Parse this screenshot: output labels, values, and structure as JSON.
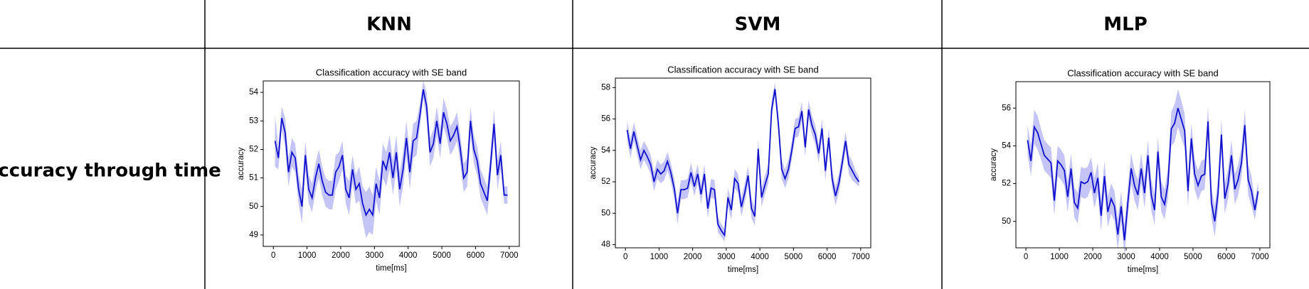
{
  "table": {
    "headers": [
      "KNN",
      "SVM",
      "MLP"
    ],
    "row_label": "Accuracy through time"
  },
  "chart_data": [
    {
      "type": "line",
      "title": "Classification accuracy with SE band",
      "xlabel": "time[ms]",
      "ylabel": "accuracy",
      "x": [
        50,
        150,
        250,
        350,
        450,
        550,
        650,
        750,
        850,
        950,
        1050,
        1150,
        1250,
        1350,
        1450,
        1550,
        1650,
        1750,
        1850,
        1950,
        2050,
        2150,
        2250,
        2350,
        2450,
        2550,
        2650,
        2750,
        2850,
        2950,
        3050,
        3150,
        3250,
        3350,
        3450,
        3550,
        3650,
        3750,
        3850,
        3950,
        4050,
        4150,
        4250,
        4350,
        4450,
        4550,
        4650,
        4750,
        4850,
        4950,
        5050,
        5150,
        5250,
        5350,
        5450,
        5550,
        5650,
        5750,
        5850,
        5950,
        6050,
        6150,
        6250,
        6350,
        6450,
        6550,
        6650,
        6750,
        6850,
        6950
      ],
      "xlim": [
        -300,
        7300
      ],
      "xticks": [
        0,
        1000,
        2000,
        3000,
        4000,
        5000,
        6000,
        7000
      ],
      "ylim": [
        48.6,
        54.4
      ],
      "yticks": [
        49,
        50,
        51,
        52,
        53,
        54
      ],
      "series": [
        {
          "color": "#1010cc",
          "band_color": "#c4c4f6",
          "values": [
            52.3,
            51.7,
            53.1,
            52.6,
            51.2,
            51.9,
            51.7,
            50.6,
            50.0,
            51.8,
            50.6,
            50.3,
            51.0,
            51.5,
            50.9,
            50.5,
            50.4,
            50.4,
            51.2,
            51.4,
            51.8,
            50.6,
            50.3,
            51.3,
            50.6,
            50.8,
            50.1,
            49.7,
            49.9,
            49.7,
            50.8,
            50.3,
            51.6,
            51.3,
            51.9,
            51.0,
            51.9,
            50.6,
            51.3,
            52.4,
            51.2,
            52.3,
            52.4,
            53.2,
            54.1,
            53.5,
            51.9,
            52.2,
            53.0,
            52.2,
            53.3,
            52.9,
            52.3,
            52.5,
            52.8,
            52.0,
            51.0,
            51.2,
            53.0,
            52.0,
            51.6,
            50.8,
            50.5,
            50.2,
            51.5,
            52.9,
            51.1,
            51.8,
            50.4,
            50.4
          ],
          "se": [
            0.9,
            0.4,
            0.4,
            0.5,
            0.5,
            0.5,
            0.5,
            0.5,
            0.6,
            0.5,
            0.5,
            0.5,
            0.5,
            0.5,
            0.5,
            0.5,
            0.5,
            0.5,
            0.6,
            0.5,
            0.5,
            0.5,
            0.6,
            0.5,
            0.5,
            0.6,
            0.6,
            0.8,
            0.8,
            0.7,
            0.6,
            0.6,
            0.6,
            0.6,
            0.6,
            0.6,
            0.6,
            0.6,
            0.6,
            0.6,
            0.6,
            0.6,
            0.6,
            0.4,
            0.3,
            0.5,
            0.5,
            0.5,
            0.5,
            0.5,
            0.5,
            0.5,
            0.5,
            0.5,
            0.5,
            0.5,
            0.5,
            0.5,
            0.5,
            0.5,
            0.5,
            0.5,
            0.5,
            0.5,
            0.5,
            0.5,
            0.5,
            0.5,
            0.3,
            0.3
          ]
        }
      ]
    },
    {
      "type": "line",
      "title": "Classification accuracy with SE band",
      "xlabel": "time[ms]",
      "ylabel": "accuracy",
      "x": [
        50,
        150,
        250,
        350,
        450,
        550,
        650,
        750,
        850,
        950,
        1050,
        1150,
        1250,
        1350,
        1450,
        1550,
        1650,
        1750,
        1850,
        1950,
        2050,
        2150,
        2250,
        2350,
        2450,
        2550,
        2650,
        2750,
        2850,
        2950,
        3050,
        3150,
        3250,
        3350,
        3450,
        3550,
        3650,
        3750,
        3850,
        3950,
        4050,
        4150,
        4250,
        4350,
        4450,
        4550,
        4650,
        4750,
        4850,
        4950,
        5050,
        5150,
        5250,
        5350,
        5450,
        5550,
        5650,
        5750,
        5850,
        5950,
        6050,
        6150,
        6250,
        6350,
        6450,
        6550,
        6650,
        6750,
        6850,
        6950
      ],
      "xlim": [
        -300,
        7300
      ],
      "xticks": [
        0,
        1000,
        2000,
        3000,
        4000,
        5000,
        6000,
        7000
      ],
      "ylim": [
        47.8,
        58.6
      ],
      "yticks": [
        48,
        50,
        52,
        54,
        56,
        58
      ],
      "series": [
        {
          "color": "#1010cc",
          "band_color": "#c4c4f6",
          "values": [
            55.3,
            54.1,
            55.2,
            54.3,
            53.4,
            54.0,
            53.6,
            53.1,
            52.0,
            52.8,
            52.5,
            52.7,
            53.3,
            52.6,
            51.6,
            50.0,
            51.5,
            51.5,
            51.6,
            52.6,
            51.7,
            52.5,
            51.2,
            52.5,
            50.3,
            51.6,
            51.5,
            49.3,
            48.9,
            48.6,
            51.0,
            50.2,
            52.2,
            51.9,
            50.4,
            51.3,
            52.4,
            50.3,
            49.8,
            54.1,
            51.0,
            51.8,
            52.5,
            56.6,
            57.9,
            55.7,
            52.8,
            52.2,
            52.8,
            54.0,
            55.4,
            55.5,
            56.5,
            54.2,
            56.6,
            55.6,
            55.0,
            53.8,
            55.4,
            52.7,
            54.8,
            52.2,
            51.1,
            51.9,
            53.2,
            54.6,
            53.1,
            52.7,
            52.3,
            52.0
          ],
          "se": [
            0.6,
            0.6,
            0.6,
            0.6,
            0.6,
            0.6,
            0.6,
            0.6,
            0.6,
            0.6,
            0.6,
            0.6,
            0.6,
            0.6,
            0.6,
            0.7,
            0.6,
            0.6,
            0.6,
            0.6,
            0.6,
            0.6,
            0.6,
            0.6,
            0.6,
            0.6,
            0.6,
            0.5,
            0.4,
            0.4,
            0.6,
            0.6,
            0.6,
            0.6,
            0.6,
            0.6,
            0.6,
            0.6,
            0.6,
            0.6,
            0.6,
            0.6,
            0.6,
            0.6,
            0.4,
            0.6,
            0.6,
            0.6,
            0.6,
            0.6,
            0.6,
            0.6,
            0.6,
            0.6,
            0.6,
            0.6,
            0.6,
            0.6,
            0.6,
            0.6,
            0.6,
            0.6,
            0.6,
            0.6,
            0.6,
            0.6,
            0.6,
            0.6,
            0.4,
            0.3
          ]
        }
      ]
    },
    {
      "type": "line",
      "title": "Classification accuracy with SE band",
      "xlabel": "time[ms]",
      "ylabel": "accuracy",
      "x": [
        50,
        150,
        250,
        350,
        450,
        550,
        650,
        750,
        850,
        950,
        1050,
        1150,
        1250,
        1350,
        1450,
        1550,
        1650,
        1750,
        1850,
        1950,
        2050,
        2150,
        2250,
        2350,
        2450,
        2550,
        2650,
        2750,
        2850,
        2950,
        3050,
        3150,
        3250,
        3350,
        3450,
        3550,
        3650,
        3750,
        3850,
        3950,
        4050,
        4150,
        4250,
        4350,
        4450,
        4550,
        4650,
        4750,
        4850,
        4950,
        5050,
        5150,
        5250,
        5350,
        5450,
        5550,
        5650,
        5750,
        5850,
        5950,
        6050,
        6150,
        6250,
        6350,
        6450,
        6550,
        6650,
        6750,
        6850,
        6950
      ],
      "xlim": [
        -300,
        7300
      ],
      "xticks": [
        0,
        1000,
        2000,
        3000,
        4000,
        5000,
        6000,
        7000
      ],
      "ylim": [
        48.6,
        57.4
      ],
      "yticks": [
        50,
        52,
        54,
        56
      ],
      "series": [
        {
          "color": "#1010cc",
          "band_color": "#c4c4f6",
          "values": [
            54.3,
            53.2,
            55.0,
            54.7,
            54.1,
            53.5,
            53.3,
            53.1,
            51.1,
            53.2,
            53.0,
            52.7,
            51.3,
            52.8,
            51.0,
            50.7,
            52.1,
            52.0,
            52.1,
            52.6,
            51.5,
            52.3,
            50.3,
            52.4,
            50.5,
            51.2,
            50.8,
            49.3,
            50.8,
            49.0,
            51.0,
            52.8,
            51.9,
            51.4,
            52.8,
            51.5,
            53.5,
            51.4,
            50.6,
            53.7,
            51.3,
            50.9,
            52.0,
            54.9,
            55.2,
            56.0,
            55.4,
            54.8,
            51.6,
            54.4,
            52.5,
            51.9,
            52.4,
            52.5,
            55.3,
            51.0,
            50.0,
            51.5,
            54.6,
            51.2,
            52.0,
            53.5,
            51.7,
            52.2,
            53.1,
            55.1,
            52.2,
            51.6,
            50.6,
            51.6
          ],
          "se": [
            0.8,
            0.8,
            0.9,
            0.9,
            0.8,
            0.8,
            0.8,
            0.8,
            0.8,
            0.8,
            0.8,
            0.8,
            0.8,
            0.8,
            0.8,
            0.8,
            0.8,
            0.8,
            0.8,
            0.8,
            0.8,
            0.8,
            0.8,
            0.8,
            0.8,
            0.8,
            0.8,
            0.8,
            0.8,
            0.8,
            0.8,
            0.8,
            0.8,
            0.8,
            0.8,
            0.8,
            0.8,
            0.8,
            0.8,
            0.8,
            0.8,
            0.8,
            0.8,
            0.9,
            1.0,
            1.0,
            1.0,
            0.9,
            0.8,
            0.8,
            0.8,
            0.8,
            0.8,
            0.8,
            0.8,
            0.8,
            0.8,
            0.8,
            0.8,
            0.8,
            0.8,
            0.8,
            0.8,
            0.8,
            0.8,
            0.8,
            0.8,
            0.8,
            0.5,
            0.5
          ]
        }
      ]
    }
  ]
}
